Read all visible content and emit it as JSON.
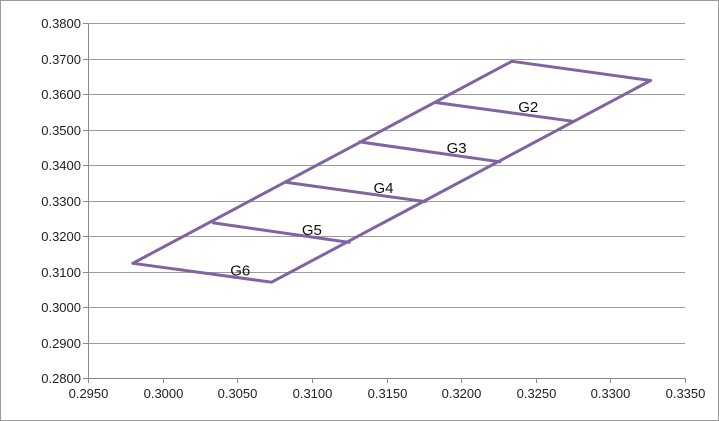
{
  "chart_data": {
    "type": "line",
    "title": "",
    "xlabel": "",
    "ylabel": "",
    "xlim": [
      0.295,
      0.335
    ],
    "ylim": [
      0.28,
      0.38
    ],
    "x_ticks": [
      "0.2950",
      "0.3000",
      "0.3050",
      "0.3100",
      "0.3150",
      "0.3200",
      "0.3250",
      "0.3300",
      "0.3350"
    ],
    "y_ticks": [
      "0.2800",
      "0.2900",
      "0.3000",
      "0.3100",
      "0.3200",
      "0.3300",
      "0.3400",
      "0.3500",
      "0.3600",
      "0.3700",
      "0.3800"
    ],
    "grid": "horizontal",
    "legend": "none",
    "line_color": "#8064a2",
    "series": [
      {
        "values": [
          [
            0.298,
            0.3123
          ],
          [
            0.3073,
            0.307
          ],
          [
            0.3327,
            0.3638
          ],
          [
            0.3234,
            0.3692
          ],
          [
            0.298,
            0.3123
          ]
        ]
      },
      {
        "values": [
          [
            0.3034,
            0.3237
          ],
          [
            0.3125,
            0.3182
          ]
        ]
      },
      {
        "values": [
          [
            0.3083,
            0.3351
          ],
          [
            0.3176,
            0.3297
          ]
        ]
      },
      {
        "values": [
          [
            0.3132,
            0.3465
          ],
          [
            0.3226,
            0.3409
          ]
        ]
      },
      {
        "values": [
          [
            0.3183,
            0.3576
          ],
          [
            0.3275,
            0.3523
          ]
        ]
      }
    ],
    "annotations": [
      {
        "text": "G2",
        "x": 0.3245,
        "y": 0.3563
      },
      {
        "text": "G3",
        "x": 0.3197,
        "y": 0.3448
      },
      {
        "text": "G4",
        "x": 0.3148,
        "y": 0.3335
      },
      {
        "text": "G5",
        "x": 0.31,
        "y": 0.3217
      },
      {
        "text": "G6",
        "x": 0.3052,
        "y": 0.3103
      }
    ]
  }
}
